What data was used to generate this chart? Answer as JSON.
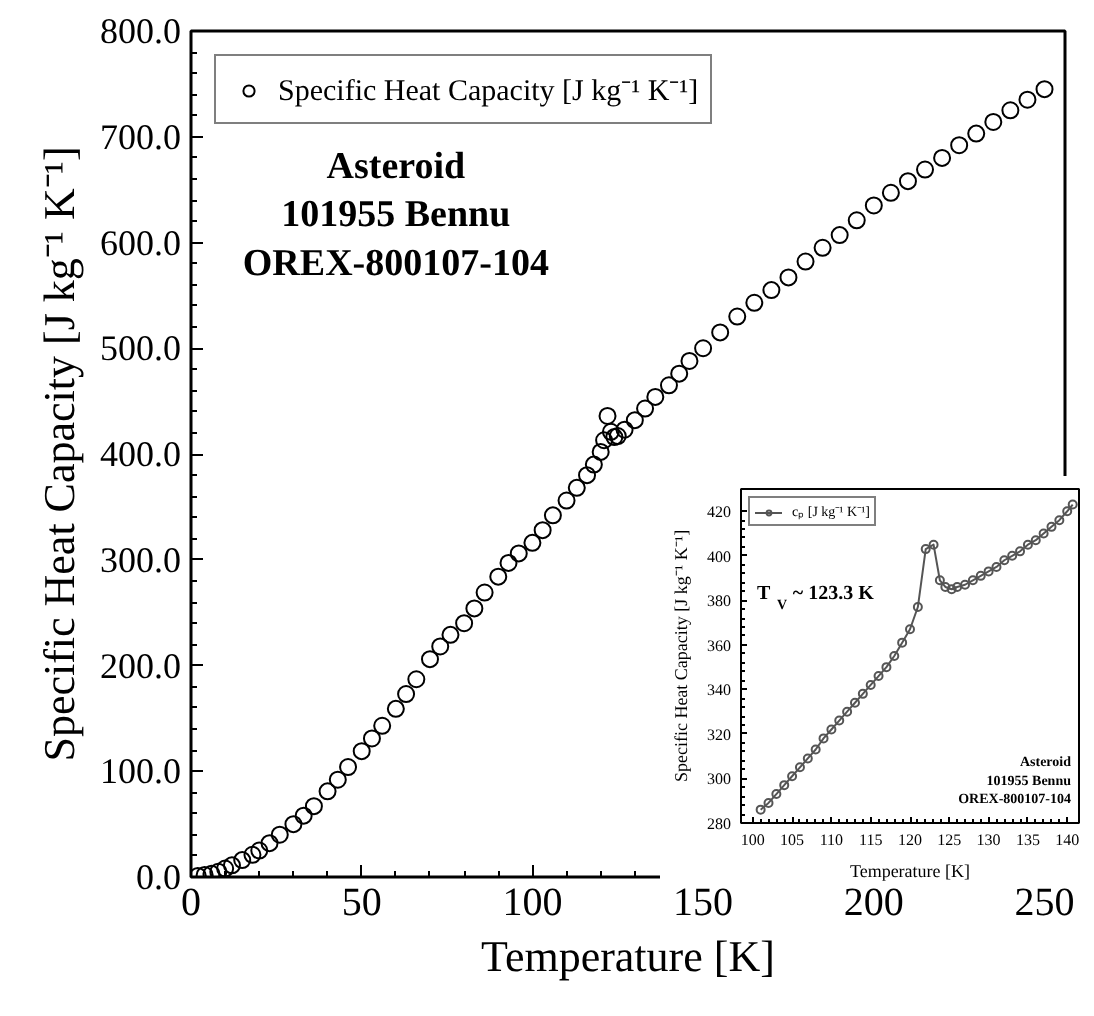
{
  "chart_data": [
    {
      "type": "scatter",
      "xlabel": "Temperature [K]",
      "ylabel": "Specific Heat Capacity [J kg⁻¹ K⁻¹]",
      "marker": "circle",
      "legend": "top left",
      "grid": false,
      "xlim": [
        0,
        256
      ],
      "ylim": [
        0,
        800
      ],
      "xticks": [
        0,
        50,
        100,
        150,
        200,
        250
      ],
      "yticks": [
        {
          "value": 0,
          "label": "0.0"
        },
        {
          "value": 100,
          "label": "100.0"
        },
        {
          "value": 200,
          "label": "200.0"
        },
        {
          "value": 300,
          "label": "300.0"
        },
        {
          "value": 400,
          "label": "400.0"
        },
        {
          "value": 500,
          "label": "500.0"
        },
        {
          "value": 600,
          "label": "600.0"
        },
        {
          "value": 700,
          "label": "700.0"
        },
        {
          "value": 800,
          "label": "800.0"
        }
      ],
      "annotations": [
        "Asteroid\n101955 Bennu\nOREX-800107-104"
      ],
      "series": [
        {
          "name": "Specific Heat Capacity [J kg⁻¹ K⁻¹]",
          "color": "#000000",
          "x": [
            2,
            4,
            6,
            8,
            10,
            12,
            15,
            18,
            20,
            23,
            26,
            30,
            33,
            36,
            40,
            43,
            46,
            50,
            53,
            56,
            60,
            63,
            66,
            70,
            73,
            76,
            80,
            83,
            86,
            90,
            93,
            96,
            100,
            103,
            106,
            110,
            113,
            116,
            118,
            120,
            121,
            122,
            123,
            124,
            125,
            127,
            130,
            133,
            136,
            140,
            143,
            146,
            150,
            155,
            160,
            165,
            170,
            175,
            180,
            185,
            190,
            195,
            200,
            205,
            210,
            215,
            220,
            225,
            230,
            235,
            240,
            245,
            250
          ],
          "values": [
            1,
            2,
            3,
            5,
            8,
            11,
            16,
            21,
            25,
            32,
            40,
            50,
            58,
            67,
            81,
            92,
            104,
            119,
            131,
            143,
            159,
            173,
            187,
            206,
            218,
            229,
            240,
            254,
            269,
            284,
            297,
            306,
            316,
            328,
            342,
            356,
            368,
            380,
            390,
            402,
            413,
            436,
            421,
            416,
            417,
            423,
            432,
            443,
            454,
            465,
            476,
            488,
            500,
            515,
            530,
            543,
            555,
            567,
            582,
            595,
            607,
            621,
            635,
            647,
            658,
            669,
            680,
            692,
            703,
            714,
            725,
            735,
            745
          ]
        }
      ]
    },
    {
      "type": "line",
      "xlabel": "Temperature [K]",
      "ylabel": "Specific Heat Capacity [J kg⁻¹ K⁻¹]",
      "marker": "circle",
      "legend": "top left",
      "grid": false,
      "xlim": [
        98.5,
        141.5
      ],
      "ylim": [
        280,
        430
      ],
      "xticks": [
        100,
        105,
        110,
        115,
        120,
        125,
        130,
        135,
        140
      ],
      "yticks": [
        280,
        300,
        320,
        340,
        360,
        380,
        400,
        420
      ],
      "annotations": [
        "T$_{V}$ ~ 123.3 K",
        "Asteroid\n101955 Bennu\nOREX-800107-104"
      ],
      "series": [
        {
          "name": "cₚ [J kg⁻¹ K⁻¹]",
          "color": "#555555",
          "x": [
            101,
            102,
            103,
            104,
            105,
            106,
            107,
            108,
            109,
            110,
            111,
            112,
            113,
            114,
            115,
            116,
            117,
            118,
            119,
            120,
            121,
            122,
            123,
            123.8,
            124.5,
            125.3,
            126,
            127,
            128,
            129,
            130,
            131,
            132,
            133,
            134,
            135,
            136,
            137,
            138,
            139,
            140,
            140.7
          ],
          "values": [
            286,
            289,
            293,
            297,
            301,
            305,
            309,
            313,
            318,
            322,
            326,
            330,
            334,
            338,
            342,
            346,
            350,
            355,
            361,
            367,
            377,
            403,
            405,
            389,
            386,
            385,
            386,
            387,
            389,
            391,
            393,
            395,
            398,
            400,
            402,
            405,
            407,
            410,
            413,
            416,
            420,
            423
          ]
        }
      ]
    }
  ]
}
